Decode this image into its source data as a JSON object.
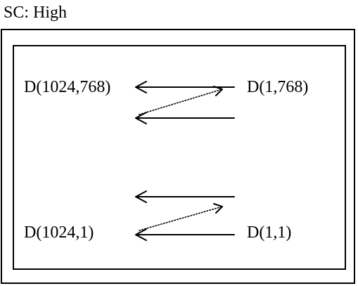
{
  "caption": "SC: High",
  "labels": {
    "top_left": "D(1024,768)",
    "top_right": "D(1,768)",
    "bottom_left": "D(1024,1)",
    "bottom_right": "D(1,1)"
  },
  "colors": {
    "stroke": "#000000",
    "background": "#ffffff"
  }
}
